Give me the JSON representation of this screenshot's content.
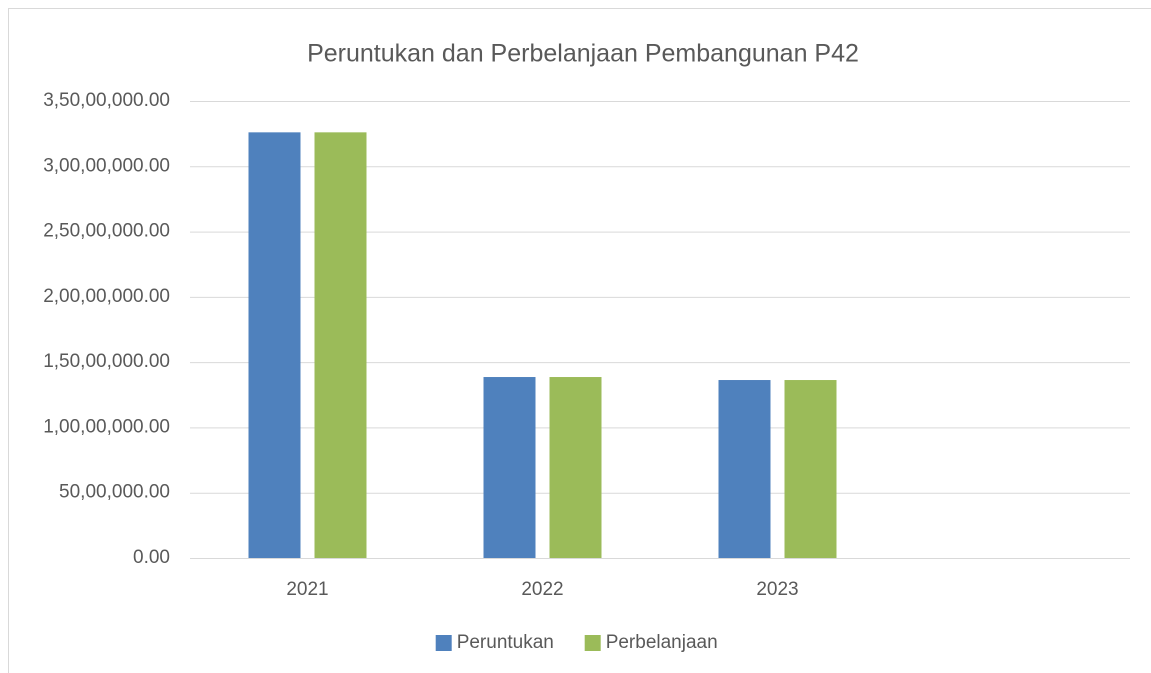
{
  "chart_data": {
    "type": "bar",
    "title": "Peruntukan dan Perbelanjaan Pembangunan P42",
    "categories": [
      "2021",
      "2022",
      "2023",
      null
    ],
    "series": [
      {
        "name": "Peruntukan",
        "color": "#4f81bd",
        "values": [
          32600000,
          13860000,
          13630000,
          null
        ]
      },
      {
        "name": "Perbelanjaan",
        "color": "#9bbb59",
        "values": [
          32600000,
          13860000,
          13630000,
          null
        ]
      }
    ],
    "ylim": [
      0,
      35000000
    ],
    "yticks": [
      {
        "value": 0,
        "label": "0.00"
      },
      {
        "value": 5000000,
        "label": "50,00,000.00"
      },
      {
        "value": 10000000,
        "label": "1,00,00,000.00"
      },
      {
        "value": 15000000,
        "label": "1,50,00,000.00"
      },
      {
        "value": 20000000,
        "label": "2,00,00,000.00"
      },
      {
        "value": 25000000,
        "label": "2,50,00,000.00"
      },
      {
        "value": 30000000,
        "label": "3,00,00,000.00"
      },
      {
        "value": 35000000,
        "label": "3,50,00,000.00"
      }
    ],
    "grid": true,
    "legend": "bottom"
  }
}
